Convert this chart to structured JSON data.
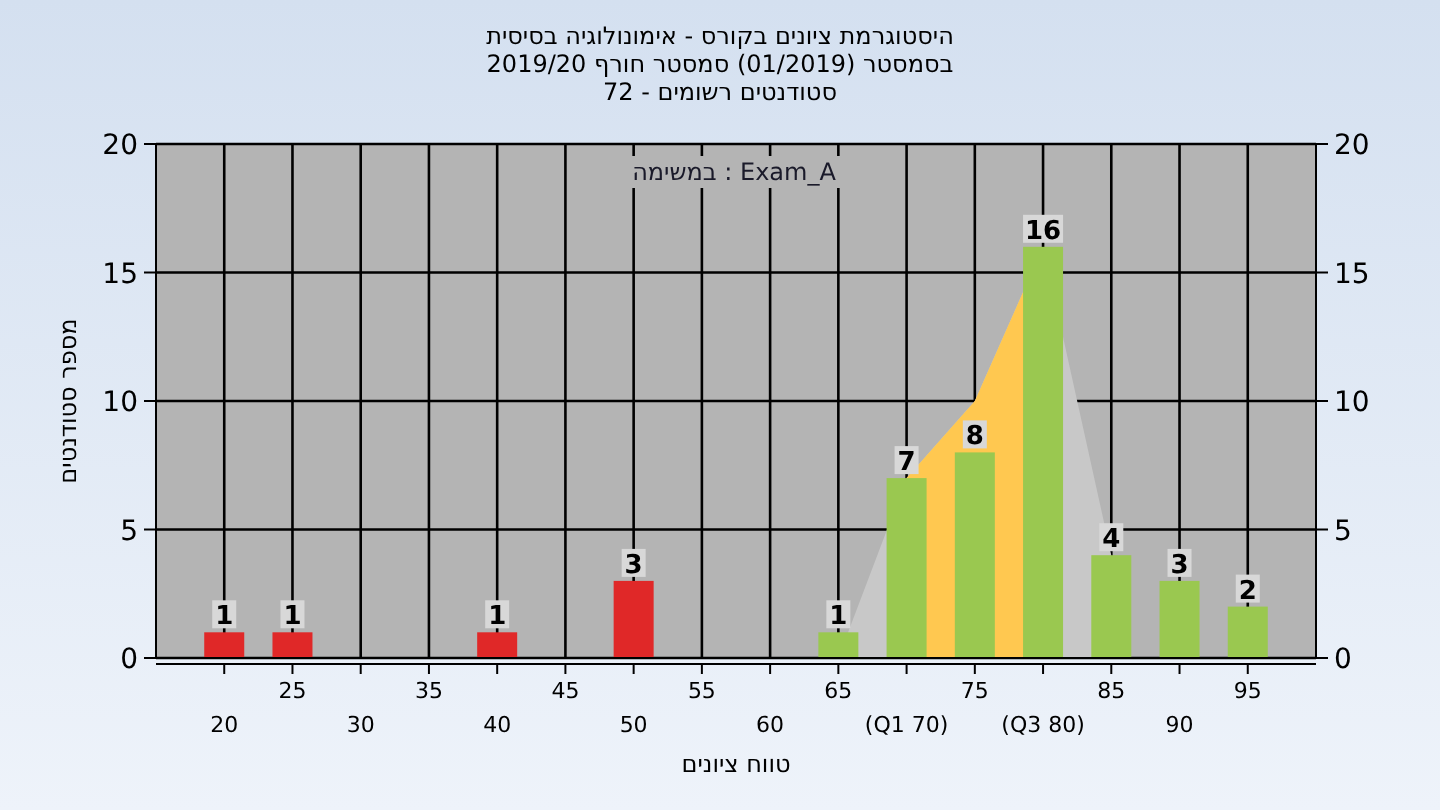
{
  "chart_data": {
    "type": "bar",
    "title": "היסטוגרמת ציונים בקורס - אימונולוגיה בסיסית",
    "subtitle": "בסמסטר (01/2019) סמסטר חורף 2019/20\nסטודנטים רשומים - 72",
    "xlabel": "טווח ציונים",
    "ylabel": "מספר סטודנטים",
    "annotations": [
      "במשימה : Exam_A"
    ],
    "categories": [
      "20",
      "25",
      "30",
      "35",
      "40",
      "45",
      "50",
      "55",
      "60",
      "65",
      "(Q1 70)",
      "75",
      "(Q3 80)",
      "85",
      "90",
      "95"
    ],
    "series": [
      {
        "type": "area",
        "color": "#c8c8c8",
        "values": [
          null,
          null,
          null,
          null,
          null,
          null,
          null,
          null,
          null,
          0,
          7,
          10,
          16,
          4,
          null,
          null
        ]
      },
      {
        "type": "area",
        "color": "#ffc850",
        "values": [
          null,
          null,
          null,
          null,
          null,
          null,
          null,
          null,
          null,
          null,
          7,
          10,
          16,
          null,
          null,
          null
        ]
      },
      {
        "colors": [
          "#e02828",
          "#e02828",
          "#e02828",
          "#e02828",
          "#e02828",
          "#e02828",
          "#e02828",
          "#e02828",
          "#e02828",
          "#9ac850",
          "#9ac850",
          "#9ac850",
          "#9ac850",
          "#9ac850",
          "#9ac850",
          "#9ac850"
        ],
        "values": [
          1,
          1,
          0,
          0,
          1,
          0,
          3,
          0,
          0,
          1,
          7,
          8,
          16,
          4,
          3,
          2
        ],
        "value_labels": [
          "1",
          "1",
          null,
          null,
          "1",
          null,
          "3",
          null,
          null,
          "1",
          "7",
          "8",
          "16",
          "4",
          "3",
          "2"
        ]
      }
    ],
    "ylim": [
      0,
      20
    ],
    "yticks": [
      0,
      5,
      10,
      15,
      20
    ],
    "y2lim": [
      0,
      20
    ],
    "y2ticks": [
      0,
      5,
      10,
      15,
      20
    ],
    "grid": true
  }
}
